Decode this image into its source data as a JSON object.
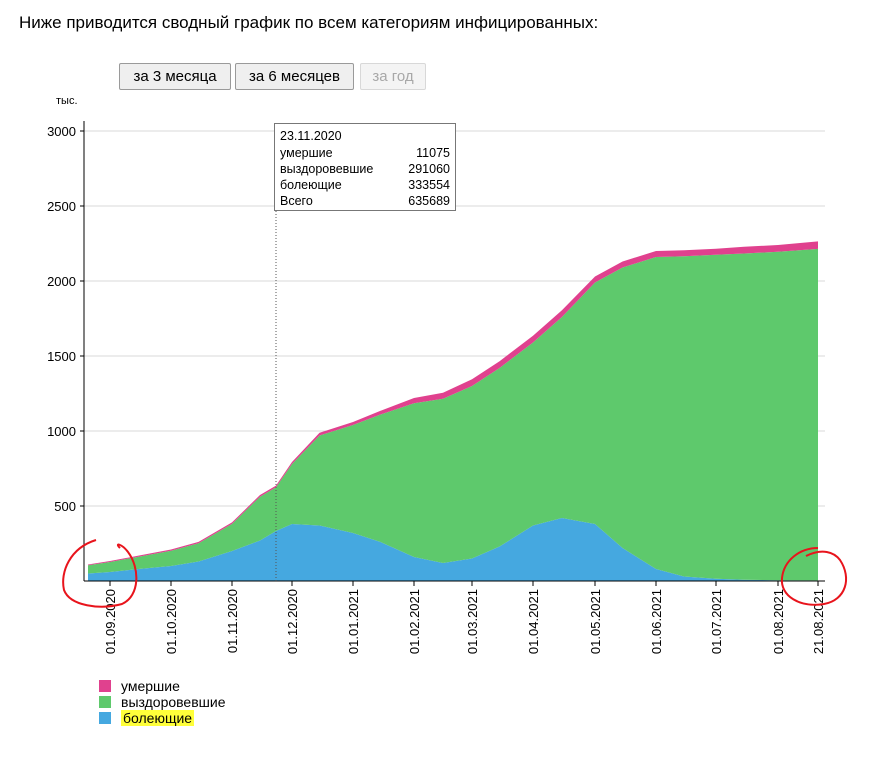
{
  "page": {
    "intro": "Ниже приводится сводный график по всем категориям инфицированных:"
  },
  "buttons": [
    {
      "label": "за 3 месяца",
      "enabled": true
    },
    {
      "label": "за 6 месяцев",
      "enabled": true
    },
    {
      "label": "за год",
      "enabled": false
    }
  ],
  "tooltip": {
    "date": "23.11.2020",
    "rows": [
      {
        "label": "умершие",
        "value": "11075"
      },
      {
        "label": "выздоровевшие",
        "value": "291060"
      },
      {
        "label": "болеющие",
        "value": "333554"
      },
      {
        "label": "Всего",
        "value": "635689"
      }
    ]
  },
  "colors": {
    "deceased": "#e0418e",
    "recovered": "#5ec96c",
    "active": "#45a8e0",
    "annotation": "#e8141c",
    "highlight": "#ffff3a"
  },
  "chart_data": {
    "type": "area",
    "stacked": true,
    "ylabel": "тыс.",
    "ylim": [
      0,
      3000
    ],
    "yticks": [
      500,
      1000,
      1500,
      2000,
      2500,
      3000
    ],
    "grid": true,
    "legend_position": "bottom-left",
    "xticks": [
      "01.09.2020",
      "01.10.2020",
      "01.11.2020",
      "01.12.2020",
      "01.01.2021",
      "01.02.2021",
      "01.03.2021",
      "01.04.2021",
      "01.05.2021",
      "01.06.2021",
      "01.07.2021",
      "01.08.2021",
      "21.08.2021"
    ],
    "x": [
      "21.08.2020",
      "01.09.2020",
      "15.09.2020",
      "01.10.2020",
      "15.10.2020",
      "01.11.2020",
      "15.11.2020",
      "23.11.2020",
      "01.12.2020",
      "15.12.2020",
      "01.01.2021",
      "15.01.2021",
      "01.02.2021",
      "15.02.2021",
      "01.03.2021",
      "15.03.2021",
      "01.04.2021",
      "15.04.2021",
      "01.05.2021",
      "15.05.2021",
      "01.06.2021",
      "15.06.2021",
      "01.07.2021",
      "15.07.2021",
      "01.08.2021",
      "21.08.2021"
    ],
    "series": [
      {
        "name": "болеющие",
        "values": [
          50,
          60,
          80,
          100,
          130,
          200,
          270,
          333.554,
          380,
          370,
          320,
          260,
          160,
          120,
          150,
          230,
          370,
          420,
          380,
          220,
          80,
          30,
          15,
          8,
          5,
          4
        ]
      },
      {
        "name": "выздоровевшие",
        "values": [
          55,
          67,
          82,
          102,
          122,
          181,
          292,
          291.06,
          400,
          600,
          720,
          850,
          1025,
          1095,
          1150,
          1190,
          1220,
          1340,
          1610,
          1870,
          2080,
          2135,
          2160,
          2175,
          2190,
          2210
        ]
      },
      {
        "name": "умершие",
        "values": [
          5,
          6,
          7,
          8,
          9,
          10,
          11,
          11.075,
          13,
          18,
          20,
          25,
          35,
          40,
          45,
          45,
          45,
          45,
          40,
          40,
          40,
          40,
          40,
          45,
          45,
          50
        ]
      }
    ]
  },
  "legend": [
    {
      "label": "умершие",
      "color": "#e0418e",
      "highlighted": false
    },
    {
      "label": "выздоровевшие",
      "color": "#5ec96c",
      "highlighted": false
    },
    {
      "label": "болеющие",
      "color": "#45a8e0",
      "highlighted": true
    }
  ]
}
